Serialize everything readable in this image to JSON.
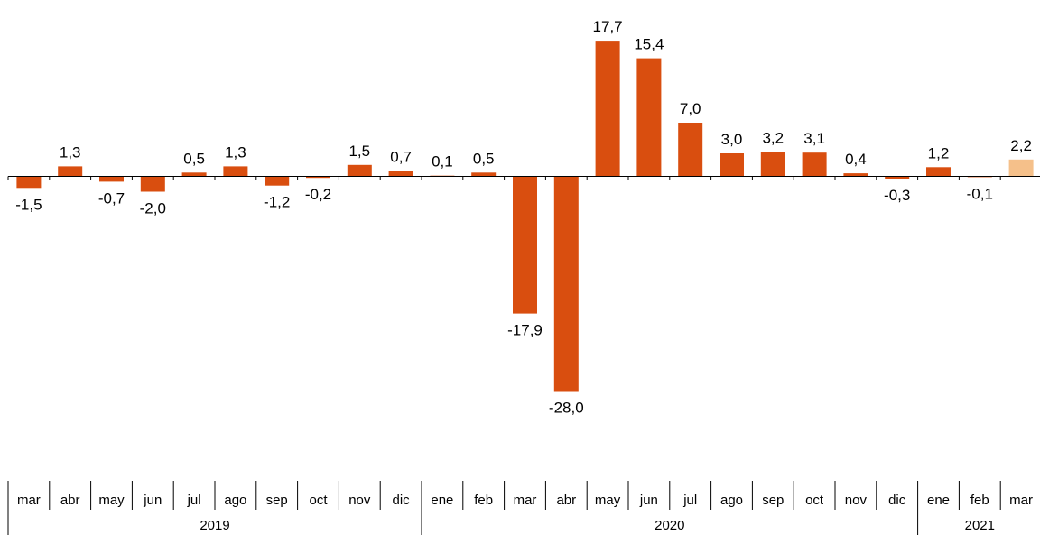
{
  "chart_data": {
    "type": "bar",
    "categories": [
      "mar",
      "abr",
      "may",
      "jun",
      "jul",
      "ago",
      "sep",
      "oct",
      "nov",
      "dic",
      "ene",
      "feb",
      "mar",
      "abr",
      "may",
      "jun",
      "jul",
      "ago",
      "sep",
      "oct",
      "nov",
      "dic",
      "ene",
      "feb",
      "mar"
    ],
    "values": [
      -1.5,
      1.3,
      -0.7,
      -2.0,
      0.5,
      1.3,
      -1.2,
      -0.2,
      1.5,
      0.7,
      0.1,
      0.5,
      -17.9,
      -28.0,
      17.7,
      15.4,
      7.0,
      3.0,
      3.2,
      3.1,
      0.4,
      -0.3,
      1.2,
      -0.1,
      2.2
    ],
    "value_labels": [
      "-1,5",
      "1,3",
      "-0,7",
      "-2,0",
      "0,5",
      "1,3",
      "-1,2",
      "-0,2",
      "1,5",
      "0,7",
      "0,1",
      "0,5",
      "-17,9",
      "-28,0",
      "17,7",
      "15,4",
      "7,0",
      "3,0",
      "3,2",
      "3,1",
      "0,4",
      "-0,3",
      "1,2",
      "-0,1",
      "2,2"
    ],
    "years": [
      {
        "label": "2019",
        "start": 0,
        "count": 10
      },
      {
        "label": "2020",
        "start": 10,
        "count": 12
      },
      {
        "label": "2021",
        "start": 22,
        "count": 3
      }
    ],
    "colors": {
      "bar": "#D94E0F",
      "highlight": "#F5C08A"
    },
    "highlight_index": 24,
    "title": "",
    "xlabel": "",
    "ylabel": "",
    "ylim": [
      -28.0,
      17.7
    ],
    "grid": false,
    "legend": "none"
  }
}
